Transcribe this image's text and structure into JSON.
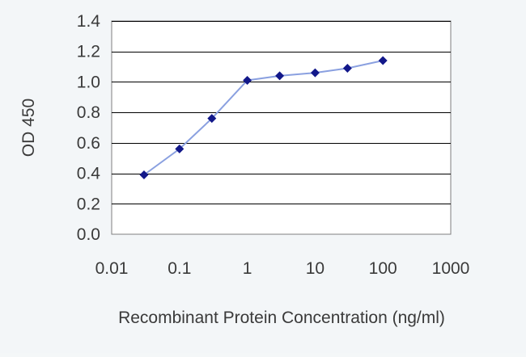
{
  "chart_data": {
    "type": "line",
    "title": "",
    "xlabel": "Recombinant Protein Concentration (ng/ml)",
    "ylabel": "OD 450",
    "x_scale": "log",
    "xlim": [
      0.01,
      1000
    ],
    "ylim": [
      0.0,
      1.4
    ],
    "x_ticks": [
      0.01,
      0.1,
      1,
      10,
      100,
      1000
    ],
    "x_tick_labels": [
      "0.01",
      "0.1",
      "1",
      "10",
      "100",
      "1000"
    ],
    "y_ticks": [
      0.0,
      0.2,
      0.4,
      0.6,
      0.8,
      1.0,
      1.2,
      1.4
    ],
    "y_tick_labels": [
      "0.0",
      "0.2",
      "0.4",
      "0.6",
      "0.8",
      "1.0",
      "1.2",
      "1.4"
    ],
    "grid": "horizontal",
    "legend": "none",
    "series": [
      {
        "x": [
          0.03,
          0.1,
          0.3,
          1,
          3,
          10,
          30,
          100
        ],
        "y": [
          0.39,
          0.56,
          0.76,
          1.01,
          1.04,
          1.06,
          1.09,
          1.14
        ],
        "marker": "diamond"
      }
    ],
    "colors": {
      "line": "#8aa0e0",
      "marker": "#12188a",
      "grid": "#000000",
      "plot_background": "#ffffff"
    }
  }
}
